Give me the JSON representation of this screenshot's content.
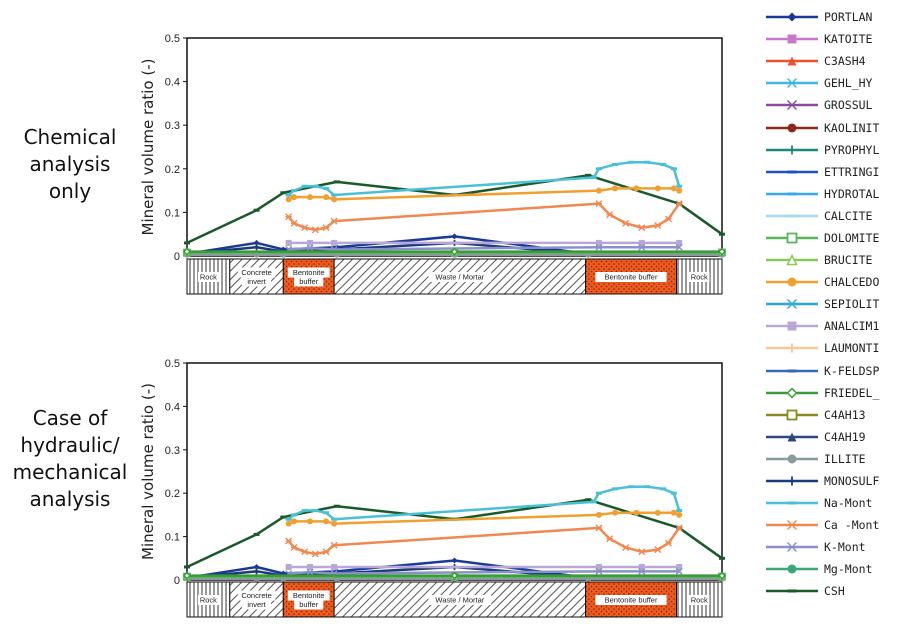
{
  "cases": [
    {
      "label_lines": [
        "Chemical",
        "analysis",
        "only"
      ]
    },
    {
      "label_lines": [
        "Case of",
        "hydraulic/",
        "mechanical",
        "analysis"
      ]
    }
  ],
  "legend": [
    {
      "name": "PORTLAN",
      "color": "#1a3a9a",
      "marker": "diamond"
    },
    {
      "name": "KATOITE",
      "color": "#c878c8",
      "marker": "square"
    },
    {
      "name": "C3ASH4",
      "color": "#f05030",
      "marker": "triangle"
    },
    {
      "name": "GEHL_HY",
      "color": "#40b8d8",
      "marker": "x"
    },
    {
      "name": "GROSSUL",
      "color": "#8a4aa0",
      "marker": "star"
    },
    {
      "name": "KAOLINIT",
      "color": "#8a2a1a",
      "marker": "circle"
    },
    {
      "name": "PYROPHYL",
      "color": "#1a8a7a",
      "marker": "plus"
    },
    {
      "name": "ETTRINGI",
      "color": "#2050c0",
      "marker": "dash"
    },
    {
      "name": "HYDROTAL",
      "color": "#38a8e8",
      "marker": "dash"
    },
    {
      "name": "CALCITE",
      "color": "#a8d8ec",
      "marker": "dash"
    },
    {
      "name": "DOLOMITE",
      "color": "#58b858",
      "marker": "square-open"
    },
    {
      "name": "BRUCITE",
      "color": "#88c858",
      "marker": "triangle-open"
    },
    {
      "name": "CHALCEDO",
      "color": "#f0a030",
      "marker": "circle"
    },
    {
      "name": "SEPIOLIT",
      "color": "#28a8d8",
      "marker": "star"
    },
    {
      "name": "ANALCIM1",
      "color": "#b8a8d8",
      "marker": "square"
    },
    {
      "name": "LAUMONTI",
      "color": "#f8c898",
      "marker": "plus"
    },
    {
      "name": "K-FELDSP",
      "color": "#3868b8",
      "marker": "dash"
    },
    {
      "name": "FRIEDEL_",
      "color": "#3a9a3a",
      "marker": "diamond-open"
    },
    {
      "name": "C4AH13",
      "color": "#8a8a20",
      "marker": "square-open"
    },
    {
      "name": "C4AH19",
      "color": "#2a4a7a",
      "marker": "triangle"
    },
    {
      "name": "ILLITE",
      "color": "#8a9a9a",
      "marker": "circle"
    },
    {
      "name": "MONOSULF",
      "color": "#1a3a7a",
      "marker": "plus"
    },
    {
      "name": "Na-Mont",
      "color": "#48c0d8",
      "marker": "dash"
    },
    {
      "name": "Ca -Mont",
      "color": "#f08850",
      "marker": "star"
    },
    {
      "name": "K-Mont",
      "color": "#8a90c8",
      "marker": "x"
    },
    {
      "name": "Mg-Mont",
      "color": "#38a878",
      "marker": "circle"
    },
    {
      "name": "CSH",
      "color": "#1a5a2a",
      "marker": "dash"
    }
  ],
  "chart_data": [
    {
      "type": "line",
      "title": "Chemical analysis only",
      "ylabel": "Mineral volume ratio (-)",
      "ylim": [
        0,
        0.5
      ],
      "yticks": [
        "0",
        "0.1",
        "0.2",
        "0.3",
        "0.4",
        "0.5"
      ],
      "zones": [
        "Rock",
        "Concrete invert",
        "Bentonite buffer",
        "Waste / Mortar",
        "Bentonite buffer",
        "Rock"
      ],
      "series": [
        {
          "name": "CSH",
          "x": [
            0,
            0.13,
            0.18,
            0.28,
            0.5,
            0.75,
            0.92,
            1.0
          ],
          "values": [
            0.03,
            0.105,
            0.145,
            0.17,
            0.14,
            0.185,
            0.12,
            0.05
          ]
        },
        {
          "name": "Na-Mont",
          "x": [
            0.19,
            0.2,
            0.22,
            0.24,
            0.26,
            0.275,
            0.76,
            0.77,
            0.8,
            0.83,
            0.86,
            0.89,
            0.91,
            0.92
          ],
          "values": [
            0.14,
            0.15,
            0.16,
            0.16,
            0.155,
            0.14,
            0.18,
            0.2,
            0.21,
            0.215,
            0.215,
            0.21,
            0.2,
            0.16
          ]
        },
        {
          "name": "CHALCEDO",
          "x": [
            0.19,
            0.2,
            0.23,
            0.26,
            0.275,
            0.77,
            0.8,
            0.84,
            0.88,
            0.91,
            0.92
          ],
          "values": [
            0.13,
            0.135,
            0.135,
            0.135,
            0.13,
            0.15,
            0.155,
            0.155,
            0.155,
            0.155,
            0.15
          ]
        },
        {
          "name": "Ca -Mont",
          "x": [
            0.19,
            0.2,
            0.22,
            0.24,
            0.26,
            0.275,
            0.77,
            0.79,
            0.82,
            0.85,
            0.88,
            0.9,
            0.92
          ],
          "values": [
            0.09,
            0.075,
            0.065,
            0.06,
            0.065,
            0.08,
            0.12,
            0.095,
            0.075,
            0.065,
            0.07,
            0.085,
            0.12
          ]
        },
        {
          "name": "PORTLAN",
          "x": [
            0,
            0.13,
            0.18,
            0.28,
            0.5,
            0.75,
            1.0
          ],
          "values": [
            0.005,
            0.03,
            0.015,
            0.02,
            0.045,
            0.005,
            0.005
          ]
        },
        {
          "name": "MONOSULF",
          "x": [
            0,
            0.13,
            0.18,
            0.28,
            0.5,
            0.75,
            1.0
          ],
          "values": [
            0.005,
            0.02,
            0.01,
            0.015,
            0.03,
            0.005,
            0.005
          ]
        },
        {
          "name": "ANALCIM1",
          "x": [
            0.19,
            0.23,
            0.275,
            0.77,
            0.85,
            0.92
          ],
          "values": [
            0.03,
            0.03,
            0.03,
            0.03,
            0.03,
            0.03
          ]
        },
        {
          "name": "K-Mont",
          "x": [
            0.19,
            0.23,
            0.275,
            0.77,
            0.85,
            0.92
          ],
          "values": [
            0.015,
            0.018,
            0.015,
            0.02,
            0.02,
            0.02
          ]
        },
        {
          "name": "ILLITE",
          "x": [
            0,
            0.13,
            0.18,
            0.28,
            0.5,
            0.75,
            1.0
          ],
          "values": [
            0.003,
            0.003,
            0.003,
            0.003,
            0.003,
            0.003,
            0.003
          ]
        },
        {
          "name": "DOLOMITE",
          "x": [
            0,
            0.5,
            1.0
          ],
          "values": [
            0.008,
            0.008,
            0.008
          ]
        },
        {
          "name": "FRIEDEL_",
          "x": [
            0,
            0.5,
            1.0
          ],
          "values": [
            0.01,
            0.01,
            0.01
          ]
        }
      ]
    },
    {
      "type": "line",
      "title": "Case of hydraulic/ mechanical analysis",
      "ylabel": "Mineral volume ratio (-)",
      "ylim": [
        0,
        0.5
      ],
      "yticks": [
        "0",
        "0.1",
        "0.2",
        "0.3",
        "0.4",
        "0.5"
      ],
      "zones": [
        "Rock",
        "Concrete invert",
        "Bentonite buffer",
        "Waste / Mortar",
        "Bentonite buffer",
        "Rock"
      ],
      "series": [
        {
          "name": "CSH",
          "x": [
            0,
            0.13,
            0.18,
            0.28,
            0.5,
            0.75,
            0.92,
            1.0
          ],
          "values": [
            0.03,
            0.105,
            0.145,
            0.17,
            0.14,
            0.185,
            0.12,
            0.05
          ]
        },
        {
          "name": "Na-Mont",
          "x": [
            0.19,
            0.2,
            0.22,
            0.24,
            0.26,
            0.275,
            0.76,
            0.77,
            0.8,
            0.83,
            0.86,
            0.89,
            0.91,
            0.92
          ],
          "values": [
            0.14,
            0.15,
            0.16,
            0.16,
            0.155,
            0.14,
            0.18,
            0.2,
            0.21,
            0.215,
            0.215,
            0.21,
            0.2,
            0.16
          ]
        },
        {
          "name": "CHALCEDO",
          "x": [
            0.19,
            0.2,
            0.23,
            0.26,
            0.275,
            0.77,
            0.8,
            0.84,
            0.88,
            0.91,
            0.92
          ],
          "values": [
            0.13,
            0.135,
            0.135,
            0.135,
            0.13,
            0.15,
            0.155,
            0.155,
            0.155,
            0.155,
            0.15
          ]
        },
        {
          "name": "Ca -Mont",
          "x": [
            0.19,
            0.2,
            0.22,
            0.24,
            0.26,
            0.275,
            0.77,
            0.79,
            0.82,
            0.85,
            0.88,
            0.9,
            0.92
          ],
          "values": [
            0.09,
            0.075,
            0.065,
            0.06,
            0.065,
            0.08,
            0.12,
            0.095,
            0.075,
            0.065,
            0.07,
            0.085,
            0.12
          ]
        },
        {
          "name": "PORTLAN",
          "x": [
            0,
            0.13,
            0.18,
            0.28,
            0.5,
            0.75,
            1.0
          ],
          "values": [
            0.005,
            0.03,
            0.015,
            0.02,
            0.045,
            0.005,
            0.005
          ]
        },
        {
          "name": "MONOSULF",
          "x": [
            0,
            0.13,
            0.18,
            0.28,
            0.5,
            0.75,
            1.0
          ],
          "values": [
            0.005,
            0.02,
            0.01,
            0.015,
            0.03,
            0.005,
            0.005
          ]
        },
        {
          "name": "ANALCIM1",
          "x": [
            0.19,
            0.23,
            0.275,
            0.77,
            0.85,
            0.92
          ],
          "values": [
            0.03,
            0.03,
            0.03,
            0.03,
            0.03,
            0.03
          ]
        },
        {
          "name": "K-Mont",
          "x": [
            0.19,
            0.23,
            0.275,
            0.77,
            0.85,
            0.92
          ],
          "values": [
            0.015,
            0.018,
            0.015,
            0.02,
            0.02,
            0.02
          ]
        },
        {
          "name": "ILLITE",
          "x": [
            0,
            0.13,
            0.18,
            0.28,
            0.5,
            0.75,
            1.0
          ],
          "values": [
            0.003,
            0.003,
            0.003,
            0.003,
            0.003,
            0.003,
            0.003
          ]
        },
        {
          "name": "DOLOMITE",
          "x": [
            0,
            0.5,
            1.0
          ],
          "values": [
            0.008,
            0.008,
            0.008
          ]
        },
        {
          "name": "FRIEDEL_",
          "x": [
            0,
            0.5,
            1.0
          ],
          "values": [
            0.01,
            0.01,
            0.01
          ]
        }
      ]
    }
  ]
}
